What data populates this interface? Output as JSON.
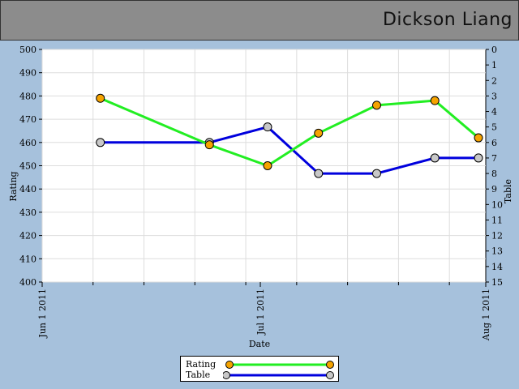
{
  "page": {
    "title": "Dickson Liang"
  },
  "chart_data": {
    "type": "line",
    "xlabel": "Date",
    "ylabel_left": "Rating",
    "ylabel_right": "Table",
    "x_ticks": [
      "Jun 1 2011",
      "Jul 1 2011",
      "Aug 1 2011"
    ],
    "x_range": [
      "2011-06-01",
      "2011-08-01"
    ],
    "y_left_range": [
      400,
      500
    ],
    "y_left_ticks": [
      400,
      410,
      420,
      430,
      440,
      450,
      460,
      470,
      480,
      490,
      500
    ],
    "y_right_range": [
      0,
      15
    ],
    "y_right_ticks": [
      0,
      1,
      2,
      3,
      4,
      5,
      6,
      7,
      8,
      9,
      10,
      11,
      12,
      13,
      14,
      15
    ],
    "y_right_inverted": true,
    "grid": true,
    "legend_position": "bottom-center",
    "series": [
      {
        "name": "Rating",
        "axis": "left",
        "line_color": "#22ee22",
        "marker_color": "#f5a300",
        "points": [
          {
            "x": "2011-06-09",
            "y": 479
          },
          {
            "x": "2011-06-24",
            "y": 459
          },
          {
            "x": "2011-07-02",
            "y": 450
          },
          {
            "x": "2011-07-09",
            "y": 464
          },
          {
            "x": "2011-07-17",
            "y": 476
          },
          {
            "x": "2011-07-25",
            "y": 478
          },
          {
            "x": "2011-07-31",
            "y": 462
          }
        ]
      },
      {
        "name": "Table",
        "axis": "right",
        "line_color": "#0000dd",
        "marker_color": "#c8c8c8",
        "points": [
          {
            "x": "2011-06-09",
            "y": 6
          },
          {
            "x": "2011-06-24",
            "y": 6
          },
          {
            "x": "2011-07-02",
            "y": 5
          },
          {
            "x": "2011-07-09",
            "y": 8
          },
          {
            "x": "2011-07-17",
            "y": 8
          },
          {
            "x": "2011-07-25",
            "y": 7
          },
          {
            "x": "2011-07-31",
            "y": 7
          }
        ]
      }
    ]
  }
}
